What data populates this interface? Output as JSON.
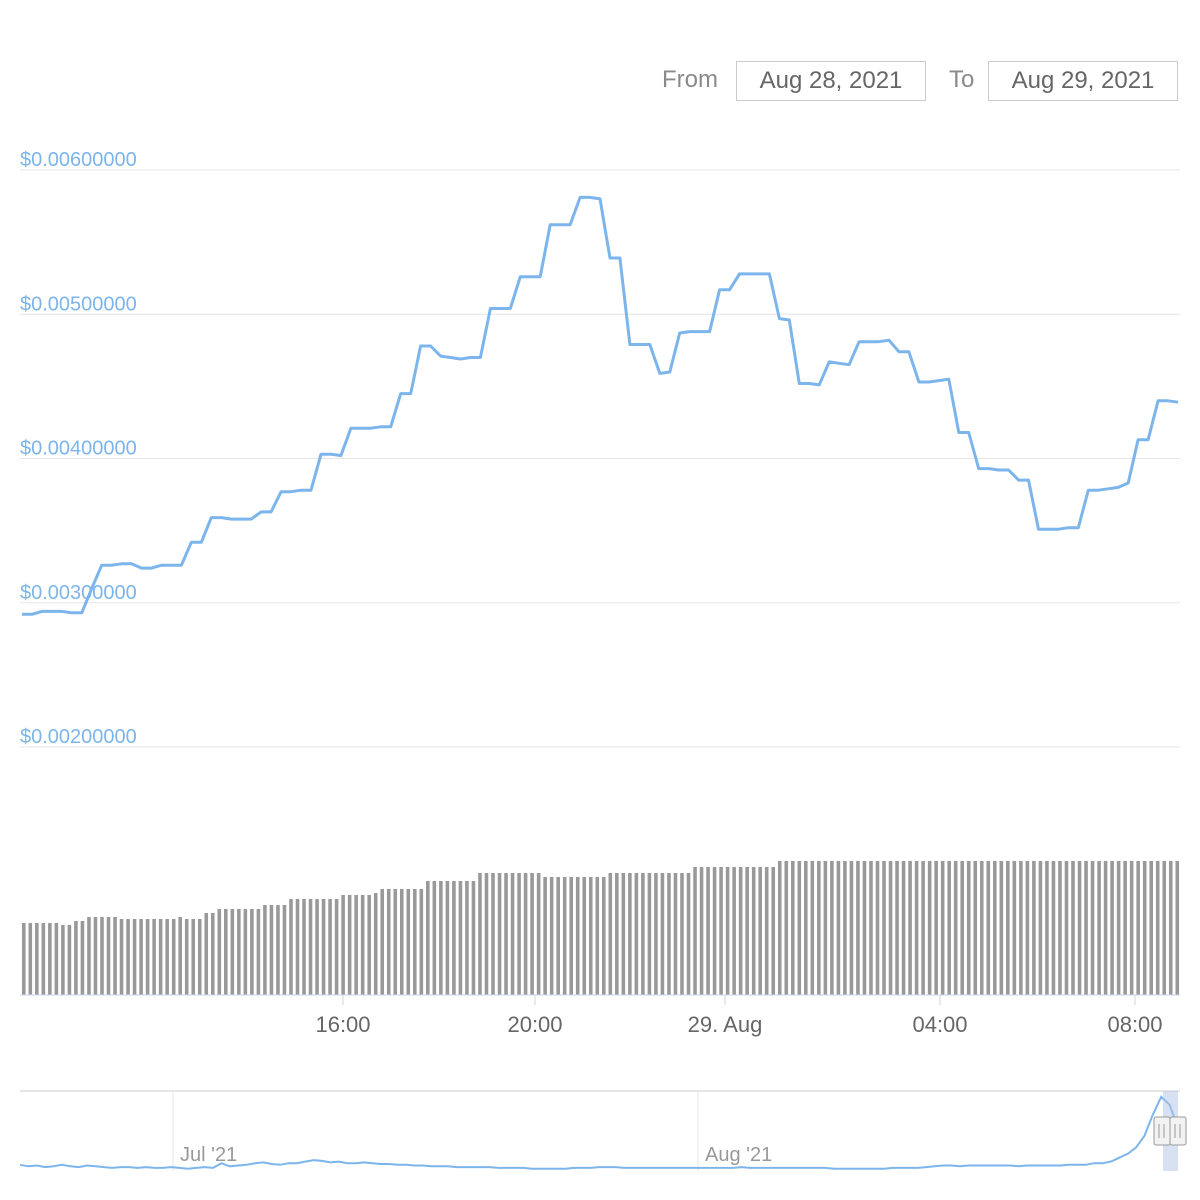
{
  "range_selector": {
    "from_label": "From",
    "from_value": "Aug 28, 2021",
    "to_label": "To",
    "to_value": "Aug 29, 2021"
  },
  "colors": {
    "price_line": "#7cb5ec",
    "volume_bar": "#999999",
    "grid": "#e6e6e6",
    "axis_label": "#7cb5ec",
    "navigator_mask": "#b0c4e6"
  },
  "chart_data": [
    {
      "type": "line",
      "series": [
        {
          "values": [
            0.00292,
            0.00292,
            0.00294,
            0.00294,
            0.00294,
            0.00293,
            0.00293,
            0.0031,
            0.00326,
            0.00326,
            0.00327,
            0.00327,
            0.00324,
            0.00324,
            0.00326,
            0.00326,
            0.00326,
            0.00342,
            0.00342,
            0.00359,
            0.00359,
            0.00358,
            0.00358,
            0.00358,
            0.00363,
            0.00363,
            0.00377,
            0.00377,
            0.00378,
            0.00378,
            0.00403,
            0.00403,
            0.00402,
            0.00421,
            0.00421,
            0.00421,
            0.00422,
            0.00422,
            0.00445,
            0.00445,
            0.00478,
            0.00478,
            0.00471,
            0.0047,
            0.00469,
            0.0047,
            0.0047,
            0.00504,
            0.00504,
            0.00504,
            0.00526,
            0.00526,
            0.00526,
            0.00562,
            0.00562,
            0.00562,
            0.00581,
            0.00581,
            0.0058,
            0.00539,
            0.00539,
            0.00479,
            0.00479,
            0.00479,
            0.00459,
            0.0046,
            0.00487,
            0.00488,
            0.00488,
            0.00488,
            0.00517,
            0.00517,
            0.00528,
            0.00528,
            0.00528,
            0.00528,
            0.00497,
            0.00496,
            0.00452,
            0.00452,
            0.00451,
            0.00467,
            0.00466,
            0.00465,
            0.00481,
            0.00481,
            0.00481,
            0.00482,
            0.00474,
            0.00474,
            0.00453,
            0.00453,
            0.00454,
            0.00455,
            0.00418,
            0.00418,
            0.00393,
            0.00393,
            0.00392,
            0.00392,
            0.00385,
            0.00385,
            0.00351,
            0.00351,
            0.00351,
            0.00352,
            0.00352,
            0.00378,
            0.00378,
            0.00379,
            0.0038,
            0.00383,
            0.00413,
            0.00413,
            0.0044,
            0.0044,
            0.00439
          ]
        }
      ],
      "x_ticks": [
        "16:00",
        "20:00",
        "29. Aug",
        "04:00",
        "08:00"
      ],
      "y_ticks": [
        "$0.00600000",
        "$0.00500000",
        "$0.00400000",
        "$0.00300000",
        "$0.00200000"
      ],
      "ylim": [
        0.002,
        0.006
      ],
      "grid": true
    },
    {
      "type": "bar",
      "series": [
        {
          "values": [
            0.36,
            0.36,
            0.36,
            0.36,
            0.36,
            0.36,
            0.35,
            0.35,
            0.37,
            0.37,
            0.39,
            0.39,
            0.39,
            0.39,
            0.39,
            0.38,
            0.38,
            0.38,
            0.38,
            0.38,
            0.38,
            0.38,
            0.38,
            0.38,
            0.39,
            0.38,
            0.38,
            0.38,
            0.41,
            0.41,
            0.43,
            0.43,
            0.43,
            0.43,
            0.43,
            0.43,
            0.43,
            0.45,
            0.45,
            0.45,
            0.45,
            0.48,
            0.48,
            0.48,
            0.48,
            0.48,
            0.48,
            0.48,
            0.48,
            0.5,
            0.5,
            0.5,
            0.5,
            0.5,
            0.51,
            0.53,
            0.53,
            0.53,
            0.53,
            0.53,
            0.53,
            0.53,
            0.57,
            0.57,
            0.57,
            0.57,
            0.57,
            0.57,
            0.57,
            0.57,
            0.61,
            0.61,
            0.61,
            0.61,
            0.61,
            0.61,
            0.61,
            0.61,
            0.61,
            0.61,
            0.59,
            0.59,
            0.59,
            0.59,
            0.59,
            0.59,
            0.59,
            0.59,
            0.59,
            0.59,
            0.61,
            0.61,
            0.61,
            0.61,
            0.61,
            0.61,
            0.61,
            0.61,
            0.61,
            0.61,
            0.61,
            0.61,
            0.61,
            0.64,
            0.64,
            0.64,
            0.64,
            0.64,
            0.64,
            0.64,
            0.64,
            0.64,
            0.64,
            0.64,
            0.64,
            0.64,
            0.67,
            0.67,
            0.67,
            0.67,
            0.67,
            0.67,
            0.67,
            0.67,
            0.67,
            0.67,
            0.67,
            0.67,
            0.67,
            0.67,
            0.67,
            0.67,
            0.67,
            0.67,
            0.67,
            0.67,
            0.67,
            0.67,
            0.67,
            0.67,
            0.67,
            0.67,
            0.67,
            0.67,
            0.67,
            0.67,
            0.67,
            0.67,
            0.67,
            0.67,
            0.67,
            0.67,
            0.67,
            0.67,
            0.67,
            0.67,
            0.67,
            0.67,
            0.67,
            0.67,
            0.67,
            0.67,
            0.67,
            0.67,
            0.67,
            0.67,
            0.67,
            0.67,
            0.67,
            0.67,
            0.67,
            0.67,
            0.67,
            0.67,
            0.67,
            0.67,
            0.67,
            0.67
          ]
        }
      ]
    },
    {
      "type": "area",
      "x_ticks": [
        "Jul '21",
        "Aug '21"
      ],
      "series": [
        {
          "values": [
            0.08,
            0.06,
            0.07,
            0.05,
            0.06,
            0.08,
            0.06,
            0.05,
            0.07,
            0.06,
            0.05,
            0.04,
            0.05,
            0.05,
            0.04,
            0.05,
            0.04,
            0.04,
            0.05,
            0.04,
            0.03,
            0.04,
            0.05,
            0.04,
            0.1,
            0.06,
            0.07,
            0.08,
            0.1,
            0.11,
            0.09,
            0.08,
            0.1,
            0.1,
            0.12,
            0.14,
            0.13,
            0.11,
            0.12,
            0.1,
            0.1,
            0.11,
            0.1,
            0.09,
            0.09,
            0.08,
            0.08,
            0.07,
            0.07,
            0.06,
            0.06,
            0.06,
            0.05,
            0.05,
            0.05,
            0.05,
            0.05,
            0.04,
            0.04,
            0.04,
            0.04,
            0.03,
            0.03,
            0.03,
            0.03,
            0.03,
            0.04,
            0.04,
            0.04,
            0.05,
            0.05,
            0.05,
            0.04,
            0.04,
            0.04,
            0.04,
            0.04,
            0.04,
            0.04,
            0.04,
            0.04,
            0.04,
            0.04,
            0.04,
            0.04,
            0.04,
            0.05,
            0.04,
            0.04,
            0.04,
            0.04,
            0.04,
            0.04,
            0.04,
            0.04,
            0.04,
            0.04,
            0.03,
            0.03,
            0.03,
            0.03,
            0.03,
            0.03,
            0.03,
            0.04,
            0.04,
            0.04,
            0.04,
            0.05,
            0.06,
            0.07,
            0.07,
            0.06,
            0.07,
            0.07,
            0.07,
            0.07,
            0.07,
            0.07,
            0.06,
            0.07,
            0.07,
            0.07,
            0.07,
            0.07,
            0.08,
            0.08,
            0.08,
            0.1,
            0.1,
            0.12,
            0.17,
            0.22,
            0.3,
            0.45,
            0.72,
            0.95,
            0.85,
            0.55
          ]
        }
      ]
    }
  ]
}
